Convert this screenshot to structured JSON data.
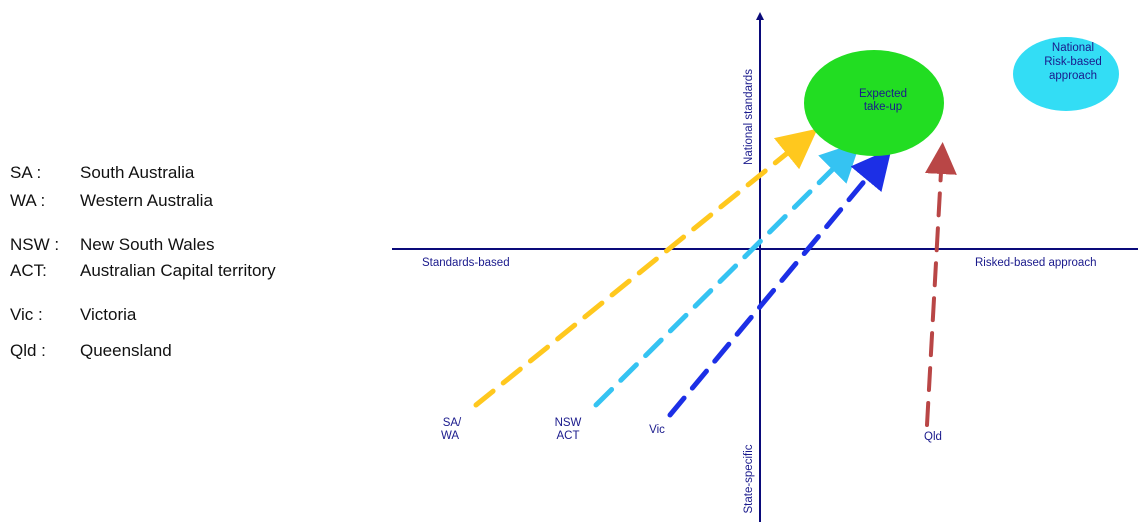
{
  "legend": [
    {
      "abbr": "SA :",
      "full": "South Australia"
    },
    {
      "abbr": "WA :",
      "full": "Western Australia"
    },
    {
      "abbr": "NSW :",
      "full": "New South Wales"
    },
    {
      "abbr": "ACT:",
      "full": "Australian Capital territory"
    },
    {
      "abbr": "Vic :",
      "full": "Victoria"
    },
    {
      "abbr": "Qld :",
      "full": "Queensland"
    }
  ],
  "axes": {
    "x_left": "Standards-based",
    "x_right": "Risked-based approach",
    "y_top": "National standards",
    "y_bottom": "State-specific"
  },
  "target": {
    "line1": "Expected",
    "line2": "take-up",
    "color": "#22dd22"
  },
  "national": {
    "line1": "National",
    "line2": "Risk-based",
    "line3": "approach",
    "color": "#33ddf5"
  },
  "arrows": [
    {
      "line1": "SA/",
      "line2": "WA",
      "color": "#ffc81e"
    },
    {
      "line1": "NSW",
      "line2": "ACT",
      "color": "#35c3f2"
    },
    {
      "line1": "Vic",
      "line2": "",
      "color": "#1c2fe6"
    },
    {
      "line1": "Qld",
      "line2": "",
      "color": "#b94646"
    }
  ],
  "colors": {
    "axis": "#0a0a7a"
  }
}
